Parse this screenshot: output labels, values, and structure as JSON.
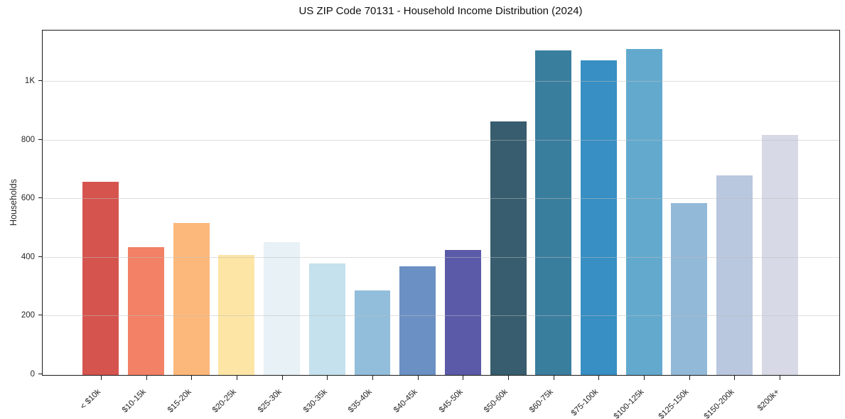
{
  "figure": {
    "title": "US ZIP Code 70131 - Household Income Distribution (2024)"
  },
  "chart_data": {
    "type": "bar",
    "title": "US ZIP Code 70131 - Household Income Distribution (2024)",
    "xlabel": "",
    "ylabel": "Households",
    "categories": [
      "< $10k",
      "$10-15k",
      "$15-20k",
      "$20-25k",
      "$25-30k",
      "$30-35k",
      "$35-40k",
      "$40-45k",
      "$45-50k",
      "$50-60k",
      "$60-75k",
      "$75-100k",
      "$100-125k",
      "$125-150k",
      "$150-200k",
      "$200k+"
    ],
    "values": [
      658,
      436,
      519,
      410,
      453,
      381,
      288,
      370,
      427,
      864,
      1108,
      1073,
      1112,
      587,
      680,
      818
    ],
    "bar_colors": [
      "#d6544e",
      "#f28165",
      "#fcb87b",
      "#fde5a5",
      "#e7f1f6",
      "#c4e1ed",
      "#92bddb",
      "#6b90c4",
      "#5a5aa8",
      "#375d6e",
      "#3a7e9e",
      "#378fc3",
      "#63a9ce",
      "#93b9d8",
      "#b9c7df",
      "#d8d9e7"
    ],
    "ylim": [
      0,
      1175
    ],
    "yticks": [
      {
        "value": 0,
        "label": "0"
      },
      {
        "value": 200,
        "label": "200"
      },
      {
        "value": 400,
        "label": "400"
      },
      {
        "value": 600,
        "label": "600"
      },
      {
        "value": 800,
        "label": "800"
      },
      {
        "value": 1000,
        "label": "1K"
      }
    ],
    "grid": true,
    "grid_color": "#bebebe",
    "legend": false,
    "bar_width_fraction": 0.8,
    "spine_color": "#1a1a1a"
  }
}
